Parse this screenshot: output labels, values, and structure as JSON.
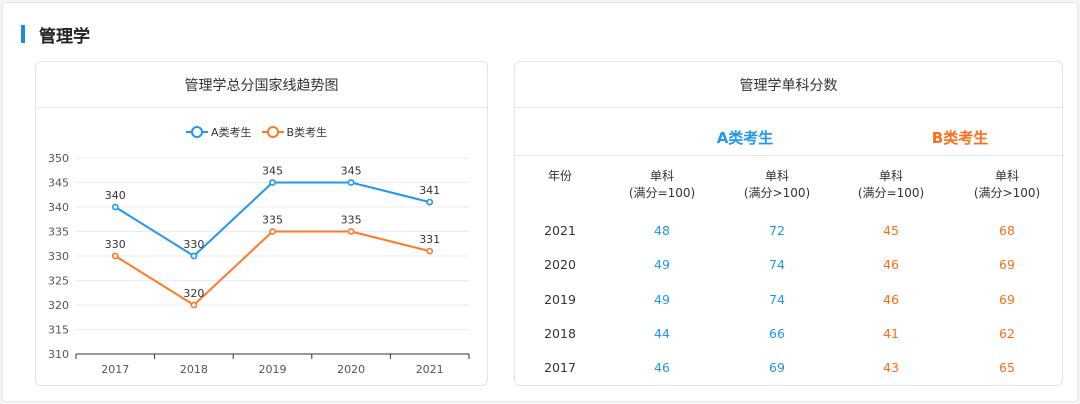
{
  "section": {
    "title": "管理学"
  },
  "left_card": {
    "title": "管理学总分国家线趋势图"
  },
  "right_card": {
    "title": "管理学单科分数"
  },
  "legend": [
    {
      "label": "A类考生",
      "color": "#2196f3"
    },
    {
      "label": "B类考生",
      "color": "#ff7a26"
    }
  ],
  "chart_data": {
    "type": "line",
    "categories": [
      "2017",
      "2018",
      "2019",
      "2020",
      "2021"
    ],
    "series": [
      {
        "name": "A类考生",
        "color": "#2196f3",
        "values": [
          340,
          330,
          345,
          345,
          341
        ]
      },
      {
        "name": "B类考生",
        "color": "#ff7a26",
        "values": [
          330,
          320,
          335,
          335,
          331
        ]
      }
    ],
    "yticks": [
      "310",
      "315",
      "320",
      "325",
      "330",
      "335",
      "340",
      "345",
      "350"
    ],
    "ylim": [
      310,
      350
    ],
    "grid": true,
    "legend_position": "top"
  },
  "score_table": {
    "groups": [
      {
        "label": "A类考生",
        "color": "#2196f3"
      },
      {
        "label": "B类考生",
        "color": "#ff6d1a"
      }
    ],
    "year_header": "年份",
    "col_headers": [
      {
        "line1": "单科",
        "line2": "(满分=100)"
      },
      {
        "line1": "单科",
        "line2": "(满分>100)"
      },
      {
        "line1": "单科",
        "line2": "(满分=100)"
      },
      {
        "line1": "单科",
        "line2": "(满分>100)"
      }
    ],
    "rows": [
      {
        "year": "2021",
        "a100": "48",
        "a_over": "72",
        "b100": "45",
        "b_over": "68"
      },
      {
        "year": "2020",
        "a100": "49",
        "a_over": "74",
        "b100": "46",
        "b_over": "69"
      },
      {
        "year": "2019",
        "a100": "49",
        "a_over": "74",
        "b100": "46",
        "b_over": "69"
      },
      {
        "year": "2018",
        "a100": "44",
        "a_over": "66",
        "b100": "41",
        "b_over": "62"
      },
      {
        "year": "2017",
        "a100": "46",
        "a_over": "69",
        "b100": "43",
        "b_over": "65"
      }
    ]
  }
}
